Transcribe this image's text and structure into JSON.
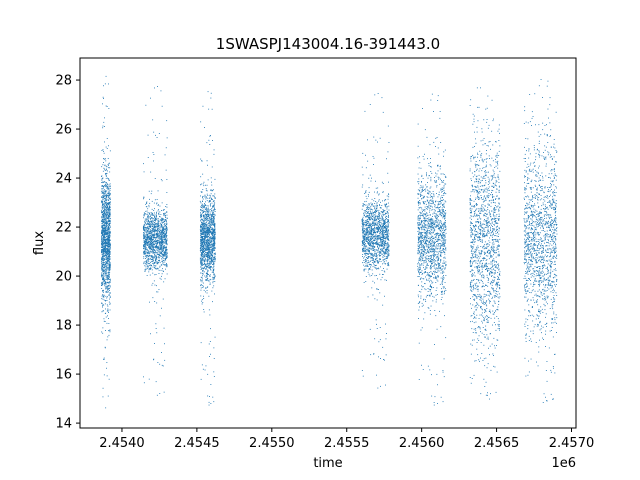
{
  "chart_data": {
    "type": "scatter",
    "title": "1SWASPJ143004.16-391443.0",
    "xlabel": "time",
    "ylabel": "flux",
    "x_offset_label": "1e6",
    "xlim": [
      2453720,
      2457030
    ],
    "ylim": [
      13.8,
      28.9
    ],
    "xticks": [
      2454000,
      2454500,
      2455000,
      2455500,
      2456000,
      2456500,
      2457000
    ],
    "xtick_labels": [
      "2.4540",
      "2.4545",
      "2.4550",
      "2.4555",
      "2.4560",
      "2.4565",
      "2.4570"
    ],
    "yticks": [
      14,
      16,
      18,
      20,
      22,
      24,
      26,
      28
    ],
    "ytick_labels": [
      "14",
      "16",
      "18",
      "20",
      "22",
      "24",
      "26",
      "28"
    ],
    "marker_color": "#1f77b4",
    "grid": false,
    "legend": "none",
    "clusters": [
      {
        "x_start": 2453860,
        "x_end": 2453920,
        "y_center": 21.5,
        "y_spread": 1.3,
        "y_min": 14.6,
        "y_max": 28.2
      },
      {
        "x_start": 2454140,
        "x_end": 2454300,
        "y_center": 21.5,
        "y_spread": 0.6,
        "y_min": 15.0,
        "y_max": 28.1
      },
      {
        "x_start": 2454520,
        "x_end": 2454620,
        "y_center": 21.5,
        "y_spread": 0.9,
        "y_min": 14.6,
        "y_max": 27.7
      },
      {
        "x_start": 2455600,
        "x_end": 2455780,
        "y_center": 21.7,
        "y_spread": 0.7,
        "y_min": 15.3,
        "y_max": 27.8
      },
      {
        "x_start": 2455970,
        "x_end": 2456160,
        "y_center": 21.6,
        "y_spread": 1.3,
        "y_min": 14.6,
        "y_max": 27.6
      },
      {
        "x_start": 2456320,
        "x_end": 2456520,
        "y_center": 21.4,
        "y_spread": 2.0,
        "y_min": 15.0,
        "y_max": 27.7
      },
      {
        "x_start": 2456680,
        "x_end": 2456900,
        "y_center": 21.5,
        "y_spread": 1.9,
        "y_min": 14.7,
        "y_max": 28.2
      }
    ]
  }
}
